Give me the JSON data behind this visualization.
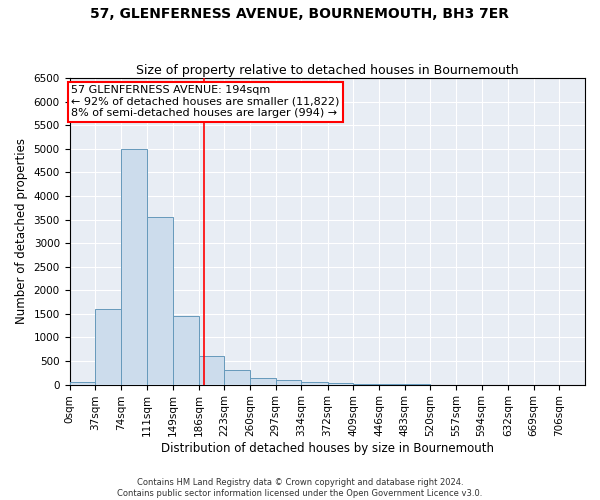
{
  "title": "57, GLENFERNESS AVENUE, BOURNEMOUTH, BH3 7ER",
  "subtitle": "Size of property relative to detached houses in Bournemouth",
  "xlabel": "Distribution of detached houses by size in Bournemouth",
  "ylabel": "Number of detached properties",
  "footer_line1": "Contains HM Land Registry data © Crown copyright and database right 2024.",
  "footer_line2": "Contains public sector information licensed under the Open Government Licence v3.0.",
  "bin_edges": [
    0,
    37,
    74,
    111,
    149,
    186,
    223,
    260,
    297,
    334,
    372,
    409,
    446,
    483,
    520,
    557,
    594,
    632,
    669,
    706,
    743
  ],
  "bar_heights": [
    50,
    1600,
    5000,
    3550,
    1450,
    600,
    300,
    150,
    100,
    50,
    25,
    15,
    8,
    4,
    2,
    1,
    0,
    0,
    0,
    0
  ],
  "bar_color": "#ccdcec",
  "bar_edge_color": "#6699bb",
  "vline_x": 194,
  "vline_color": "red",
  "annotation_text": "57 GLENFERNESS AVENUE: 194sqm\n← 92% of detached houses are smaller (11,822)\n8% of semi-detached houses are larger (994) →",
  "annotation_box_color": "red",
  "ylim": [
    0,
    6500
  ],
  "xlim": [
    0,
    743
  ],
  "yticks": [
    0,
    500,
    1000,
    1500,
    2000,
    2500,
    3000,
    3500,
    4000,
    4500,
    5000,
    5500,
    6000,
    6500
  ],
  "background_color": "#e8edf4",
  "grid_color": "white",
  "title_fontsize": 10,
  "subtitle_fontsize": 9,
  "axis_label_fontsize": 8.5,
  "tick_fontsize": 7.5,
  "annotation_fontsize": 8,
  "footer_fontsize": 6
}
